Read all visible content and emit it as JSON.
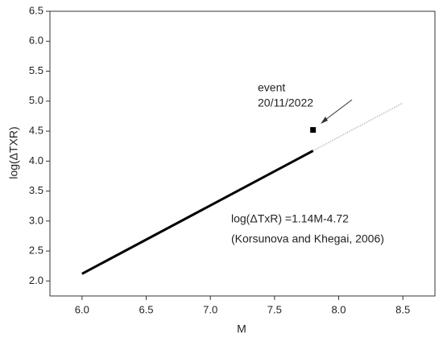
{
  "chart_data": {
    "type": "line",
    "xlabel": "M",
    "ylabel": "log(ΔTXR)",
    "xlim": [
      5.75,
      8.75
    ],
    "xticks": [
      {
        "value": 6,
        "label": "6.0"
      },
      6.5,
      {
        "value": 7,
        "label": "7.0"
      },
      7.5,
      {
        "value": 8,
        "label": "8.0"
      },
      8.5
    ],
    "ylim": [
      1.75,
      6.5
    ],
    "yticks": [
      {
        "value": 2,
        "label": "2.0"
      },
      2.5,
      {
        "value": 3,
        "label": "3.0"
      },
      3.5,
      {
        "value": 4,
        "label": "4.0"
      },
      4.5,
      {
        "value": 5,
        "label": "5.0"
      },
      5.5,
      {
        "value": 6,
        "label": "6.0"
      },
      6.5
    ],
    "series": [
      {
        "color": "#000000",
        "style": "solid",
        "x": [
          6.0,
          7.8
        ],
        "values": [
          2.12,
          4.172
        ]
      },
      {
        "color": "#bbbbbb",
        "style": "dotted",
        "x": [
          7.8,
          8.5
        ],
        "values": [
          4.172,
          4.97
        ]
      }
    ],
    "points": {
      "color": "#000000",
      "x": [
        7.8
      ],
      "values": [
        4.52
      ]
    },
    "annotations": [
      "event",
      "20/11/2022",
      "log(ΔTxR) =1.14M-4.72",
      "(Korsunova and Khegai, 2006)"
    ]
  }
}
